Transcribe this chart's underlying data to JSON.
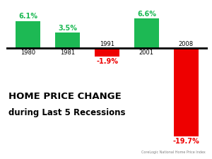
{
  "categories": [
    "1980",
    "1981",
    "1991",
    "2001",
    "2008"
  ],
  "values": [
    6.1,
    3.5,
    -1.9,
    6.6,
    -19.7
  ],
  "bar_colors": [
    "#1db954",
    "#1db954",
    "#ee0000",
    "#1db954",
    "#ee0000"
  ],
  "value_labels": [
    "6.1%",
    "3.5%",
    "-1.9%",
    "6.6%",
    "-19.7%"
  ],
  "value_label_colors": [
    "#1db954",
    "#1db954",
    "#ee0000",
    "#1db954",
    "#ee0000"
  ],
  "title_line1": "HOME PRICE CHANGE",
  "title_line2": "during Last 5 Recessions",
  "source": "CoreLogic National Home Price Index",
  "ylim": [
    -23,
    9
  ],
  "xlim": [
    -0.55,
    4.55
  ],
  "background_color": "#ffffff"
}
